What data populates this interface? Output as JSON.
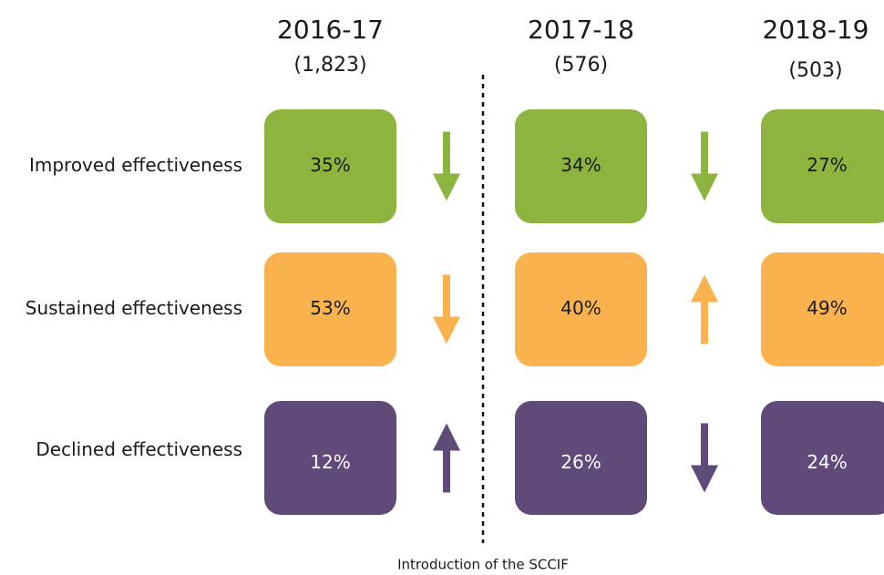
{
  "columns": [
    {
      "year": "2016-17",
      "count": "(1,823)"
    },
    {
      "year": "2017-18",
      "count": "(576)"
    },
    {
      "year": "2018-19",
      "count": "(503)"
    }
  ],
  "rows": [
    {
      "label": "Improved effectiveness",
      "color": "#8cb43f",
      "cells": [
        "35%",
        "34%",
        "27%"
      ],
      "arrows": [
        "down",
        "down"
      ]
    },
    {
      "label": "Sustained effectiveness",
      "color": "#f9b24d",
      "cells": [
        "53%",
        "40%",
        "49%"
      ],
      "arrows": [
        "down",
        "up"
      ]
    },
    {
      "label": "Declined effectiveness",
      "color": "#5f4a7a",
      "cells": [
        "12%",
        "26%",
        "24%"
      ],
      "arrows": [
        "up",
        "down"
      ]
    }
  ],
  "footnote": "Introduction of the SCCIF"
}
